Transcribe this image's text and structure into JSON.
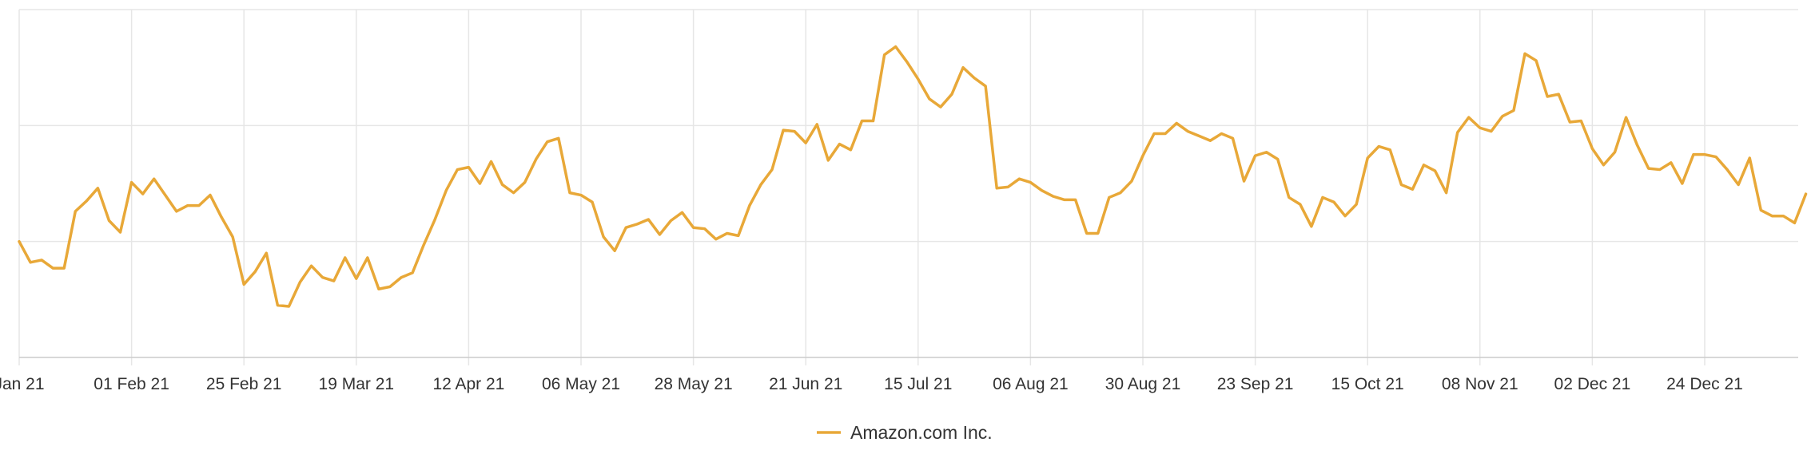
{
  "chart_data": {
    "type": "line",
    "title": "",
    "xlabel": "",
    "ylabel": "",
    "x_tick_labels": [
      "Jan 21",
      "01 Feb 21",
      "25 Feb 21",
      "19 Mar 21",
      "12 Apr 21",
      "06 May 21",
      "28 May 21",
      "21 Jun 21",
      "15 Jul 21",
      "06 Aug 21",
      "30 Aug 21",
      "23 Sep 21",
      "15 Oct 21",
      "08 Nov 21",
      "02 Dec 21",
      "24 Dec 21"
    ],
    "x_tick_index": [
      0,
      10,
      20,
      30,
      40,
      50,
      60,
      70,
      80,
      90,
      100,
      110,
      120,
      130,
      140,
      150
    ],
    "y_gridlines": [
      1,
      2,
      3
    ],
    "ylim": [
      0,
      3
    ],
    "y_tick_labels_visible": false,
    "grid": true,
    "legend": "bottom-center",
    "series": [
      {
        "name": "Amazon.com Inc.",
        "color": "#E8A838",
        "values": [
          1.0,
          0.82,
          0.84,
          0.77,
          0.77,
          1.26,
          1.35,
          1.46,
          1.18,
          1.08,
          1.51,
          1.41,
          1.54,
          1.4,
          1.26,
          1.31,
          1.31,
          1.4,
          1.21,
          1.04,
          0.63,
          0.74,
          0.9,
          0.45,
          0.44,
          0.65,
          0.79,
          0.69,
          0.66,
          0.86,
          0.68,
          0.86,
          0.59,
          0.61,
          0.69,
          0.73,
          0.97,
          1.19,
          1.44,
          1.62,
          1.64,
          1.5,
          1.69,
          1.49,
          1.42,
          1.51,
          1.71,
          1.86,
          1.89,
          1.42,
          1.4,
          1.34,
          1.04,
          0.92,
          1.12,
          1.15,
          1.19,
          1.06,
          1.18,
          1.25,
          1.12,
          1.11,
          1.02,
          1.07,
          1.05,
          1.31,
          1.49,
          1.62,
          1.96,
          1.95,
          1.85,
          2.01,
          1.7,
          1.84,
          1.79,
          2.04,
          2.04,
          2.61,
          2.68,
          2.55,
          2.4,
          2.23,
          2.16,
          2.27,
          2.5,
          2.41,
          2.34,
          1.46,
          1.47,
          1.54,
          1.51,
          1.44,
          1.39,
          1.36,
          1.36,
          1.07,
          1.07,
          1.38,
          1.42,
          1.52,
          1.74,
          1.93,
          1.93,
          2.02,
          1.95,
          1.91,
          1.87,
          1.93,
          1.89,
          1.52,
          1.74,
          1.77,
          1.71,
          1.38,
          1.32,
          1.13,
          1.38,
          1.34,
          1.22,
          1.32,
          1.72,
          1.82,
          1.79,
          1.49,
          1.45,
          1.66,
          1.61,
          1.42,
          1.94,
          2.07,
          1.98,
          1.95,
          2.08,
          2.13,
          2.62,
          2.56,
          2.25,
          2.27,
          2.03,
          2.04,
          1.8,
          1.66,
          1.77,
          2.07,
          1.83,
          1.63,
          1.62,
          1.68,
          1.5,
          1.75,
          1.75,
          1.73,
          1.62,
          1.49,
          1.72,
          1.27,
          1.22,
          1.22,
          1.16,
          1.41
        ]
      }
    ]
  }
}
